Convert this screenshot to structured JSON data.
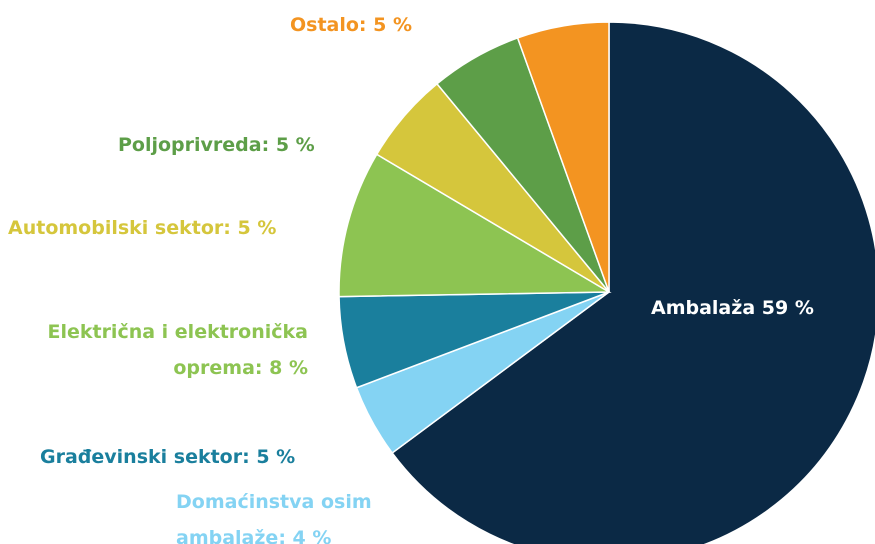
{
  "chart_data": {
    "type": "pie",
    "categories": [
      "Ambalaža",
      "Domaćinstva osim ambalaže:",
      "Građevinski sektor:",
      "Električna i elektronička oprema:",
      "Automobilski sektor:",
      "Poljoprivreda:",
      "Ostalo:"
    ],
    "values": [
      59,
      4,
      5,
      8,
      5,
      5,
      5
    ],
    "value_labels": [
      "59 %",
      "4 %",
      "5 %",
      "8 %",
      "5 %",
      "5 %",
      "5 %"
    ],
    "colors": [
      "#0b2945",
      "#84d3f3",
      "#1a7f9d",
      "#8dc452",
      "#d5c63c",
      "#5d9e48",
      "#f39421"
    ]
  }
}
